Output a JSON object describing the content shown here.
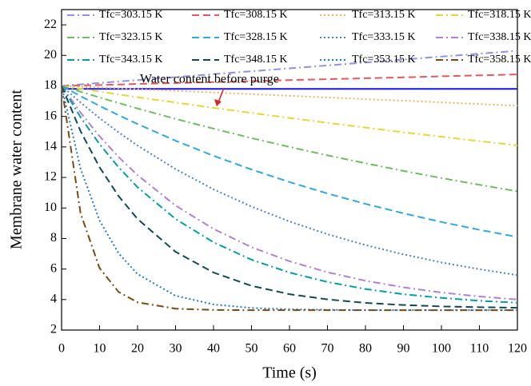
{
  "chart_data": {
    "type": "line",
    "x_label": "Time (s)",
    "y_label": "Membrane water content",
    "x": [
      0,
      5,
      10,
      15,
      20,
      30,
      40,
      50,
      60,
      70,
      80,
      90,
      100,
      110,
      120
    ],
    "xlim": [
      0,
      120
    ],
    "xticks": [
      0,
      10,
      20,
      30,
      40,
      50,
      60,
      70,
      80,
      90,
      100,
      110,
      120
    ],
    "ylim": [
      2,
      23
    ],
    "yticks": [
      2,
      4,
      6,
      8,
      10,
      12,
      14,
      16,
      18,
      20,
      22
    ],
    "hline": {
      "value": 17.8,
      "color": "#1515e0"
    },
    "annotation": {
      "text": "Water content before purge",
      "color": "#e02020"
    },
    "series": [
      {
        "name": "Tfc=303.15 K",
        "color": "#8f8fef",
        "dash": "dashdot",
        "values": [
          18,
          18.1,
          18.19,
          18.29,
          18.38,
          18.58,
          18.77,
          18.96,
          19.15,
          19.34,
          19.53,
          19.73,
          19.92,
          20.11,
          20.3
        ]
      },
      {
        "name": "Tfc=308.15 K",
        "color": "#e8585a",
        "dash": "dash",
        "values": [
          18,
          18.03,
          18.06,
          18.09,
          18.13,
          18.19,
          18.25,
          18.31,
          18.38,
          18.44,
          18.5,
          18.56,
          18.63,
          18.69,
          18.75
        ]
      },
      {
        "name": "Tfc=313.15 K",
        "color": "#f5b060",
        "dash": "dot",
        "values": [
          18,
          17.95,
          17.89,
          17.84,
          17.78,
          17.68,
          17.57,
          17.46,
          17.35,
          17.24,
          17.13,
          17.03,
          16.92,
          16.81,
          16.7
        ]
      },
      {
        "name": "Tfc=318.15 K",
        "color": "#e8d631",
        "dash": "dashdot",
        "values": [
          18,
          17.81,
          17.63,
          17.44,
          17.26,
          16.91,
          16.56,
          16.23,
          15.9,
          15.58,
          15.27,
          14.96,
          14.67,
          14.38,
          14.1
        ]
      },
      {
        "name": "Tfc=323.15 K",
        "color": "#6cbf5e",
        "dash": "dashdot",
        "values": [
          18,
          17.62,
          17.24,
          16.88,
          16.52,
          15.84,
          15.2,
          14.58,
          14.0,
          13.45,
          12.93,
          12.43,
          11.96,
          11.52,
          11.09
        ]
      },
      {
        "name": "Tfc=328.15 K",
        "color": "#2ea8e6",
        "dash": "dash",
        "values": [
          18,
          17.33,
          16.69,
          16.08,
          15.5,
          14.41,
          13.42,
          12.52,
          11.7,
          10.95,
          10.27,
          9.65,
          9.08,
          8.57,
          8.1
        ]
      },
      {
        "name": "Tfc=333.15 K",
        "color": "#4a7fd6",
        "dash": "dot",
        "values": [
          18,
          16.91,
          15.89,
          14.96,
          14.09,
          12.55,
          11.22,
          10.09,
          9.12,
          8.28,
          7.57,
          6.96,
          6.43,
          5.99,
          5.6
        ]
      },
      {
        "name": "Tfc=338.15 K",
        "color": "#b07fe0",
        "dash": "dashdot",
        "values": [
          18,
          16.25,
          14.7,
          13.34,
          12.15,
          10.16,
          8.63,
          7.43,
          6.51,
          5.79,
          5.23,
          4.8,
          4.46,
          4.2,
          4.0
        ]
      },
      {
        "name": "Tfc=343.15 K",
        "color": "#009ea8",
        "dash": "dashdot",
        "values": [
          18,
          15.95,
          14.18,
          12.67,
          11.36,
          9.28,
          7.75,
          6.61,
          5.77,
          5.15,
          4.69,
          4.35,
          4.11,
          3.92,
          3.79
        ]
      },
      {
        "name": "Tfc=348.15 K",
        "color": "#0d4a55",
        "dash": "dash",
        "values": [
          18,
          15.03,
          12.67,
          10.78,
          9.28,
          7.13,
          5.77,
          4.9,
          4.35,
          4.01,
          3.78,
          3.64,
          3.55,
          3.5,
          3.46
        ]
      },
      {
        "name": "Tfc=353.15 K",
        "color": "#1a7bd0",
        "dash": "dot",
        "values": [
          18,
          12.57,
          9.18,
          7.03,
          5.67,
          4.25,
          3.68,
          3.45,
          3.36,
          3.33,
          3.31,
          3.3,
          3.3,
          3.3,
          3.3
        ]
      },
      {
        "name": "Tfc=358.15 K",
        "color": "#7a4a10",
        "dash": "dashdot",
        "values": [
          18,
          9.65,
          6.06,
          4.5,
          3.82,
          3.4,
          3.32,
          3.3,
          3.3,
          3.3,
          3.3,
          3.3,
          3.3,
          3.3,
          3.3
        ]
      }
    ]
  }
}
